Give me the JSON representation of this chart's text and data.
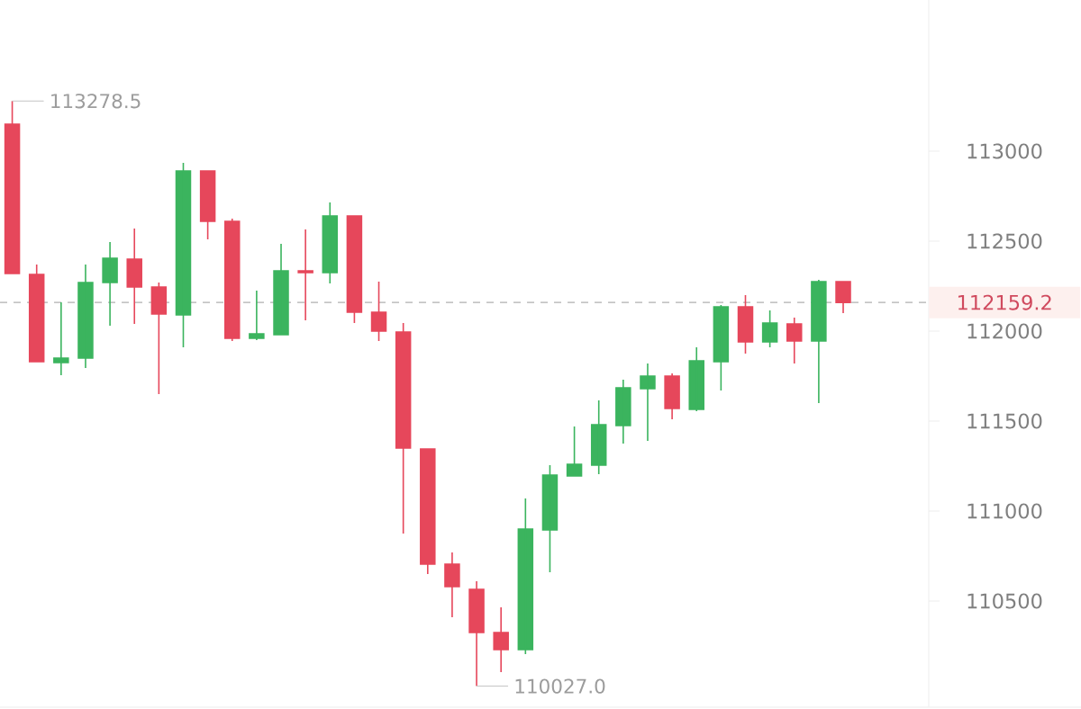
{
  "chart_data": {
    "type": "candlestick",
    "categories": [
      null,
      null,
      null,
      null,
      null,
      null,
      null,
      null,
      null,
      null,
      null,
      null,
      null,
      null,
      null,
      null,
      null,
      null,
      null,
      null,
      null,
      null,
      null,
      null,
      null,
      null,
      null,
      null,
      null,
      null,
      null,
      null,
      null,
      null,
      null,
      null,
      null,
      null
    ],
    "ohlc": [
      [
        113150,
        113278.5,
        112320,
        112320
      ],
      [
        112315,
        112370,
        111830,
        111830
      ],
      [
        111825,
        112160,
        111755,
        111850
      ],
      [
        111850,
        112370,
        111795,
        112270
      ],
      [
        112270,
        112495,
        112030,
        112405
      ],
      [
        112400,
        112570,
        112040,
        112245
      ],
      [
        112245,
        112270,
        111650,
        112095
      ],
      [
        112090,
        112935,
        111910,
        112890
      ],
      [
        112890,
        112890,
        112510,
        112610
      ],
      [
        112610,
        112625,
        111945,
        111960
      ],
      [
        111960,
        112225,
        111950,
        111985
      ],
      [
        111980,
        112485,
        111980,
        112335
      ],
      [
        112335,
        112565,
        112060,
        112325
      ],
      [
        112325,
        112715,
        112265,
        112640
      ],
      [
        112640,
        112640,
        112045,
        112105
      ],
      [
        112105,
        112275,
        111945,
        112000
      ],
      [
        111995,
        112045,
        110875,
        111350
      ],
      [
        111345,
        111345,
        110650,
        110705
      ],
      [
        110705,
        110770,
        110410,
        110580
      ],
      [
        110565,
        110610,
        110027.0,
        110325
      ],
      [
        110325,
        110465,
        110105,
        110230
      ],
      [
        110230,
        111070,
        110205,
        110900
      ],
      [
        110895,
        111255,
        110660,
        111200
      ],
      [
        111195,
        111470,
        111195,
        111260
      ],
      [
        111255,
        111615,
        111205,
        111480
      ],
      [
        111475,
        111730,
        111375,
        111685
      ],
      [
        111680,
        111820,
        111390,
        111750
      ],
      [
        111750,
        111765,
        111510,
        111570
      ],
      [
        111565,
        111910,
        111555,
        111835
      ],
      [
        111830,
        112145,
        111670,
        112135
      ],
      [
        112135,
        112200,
        111875,
        111940
      ],
      [
        111940,
        112115,
        111910,
        112045
      ],
      [
        112040,
        112075,
        111820,
        111945
      ],
      [
        111945,
        112285,
        111600,
        112275
      ],
      [
        112275,
        112275,
        112100,
        112159.2
      ],
      null,
      null,
      null
    ],
    "colors": [
      "#e6475b",
      "#e6475b",
      "#3bb45e",
      "#3bb45e",
      "#3bb45e",
      "#e6475b",
      "#e6475b",
      "#3bb45e",
      "#e6475b",
      "#e6475b",
      "#3bb45e",
      "#3bb45e",
      "#e6475b",
      "#3bb45e",
      "#e6475b",
      "#e6475b",
      "#e6475b",
      "#e6475b",
      "#e6475b",
      "#e6475b",
      "#e6475b",
      "#3bb45e",
      "#3bb45e",
      "#3bb45e",
      "#3bb45e",
      "#3bb45e",
      "#3bb45e",
      "#e6475b",
      "#3bb45e",
      "#3bb45e",
      "#e6475b",
      "#3bb45e",
      "#e6475b",
      "#3bb45e",
      "#e6475b",
      null,
      null,
      null
    ],
    "ylim": [
      109910,
      113840
    ],
    "yticks": [
      110500,
      111000,
      111500,
      112000,
      112500,
      113000
    ],
    "tick_labels": "y",
    "ref_lines": [
      {
        "axis": "y",
        "value": 112159.2,
        "label": "112159.2",
        "color": "#b0b0b0",
        "line_style": "dashed"
      }
    ],
    "annotations": [
      "113278.5",
      "110027.0"
    ]
  }
}
